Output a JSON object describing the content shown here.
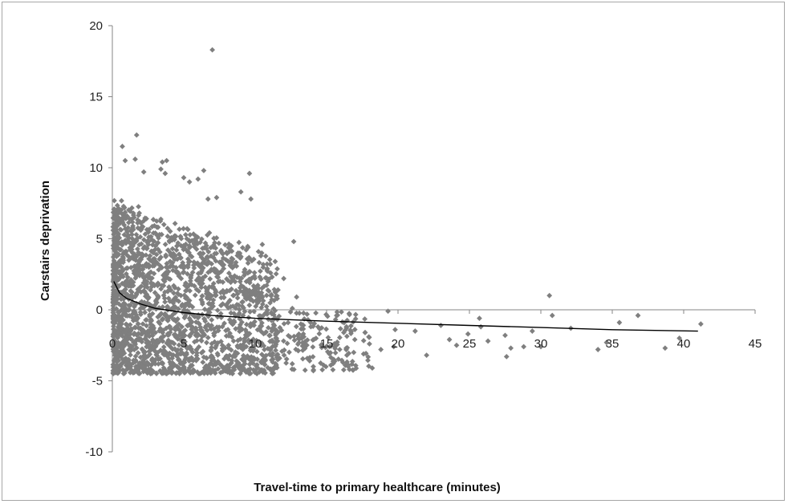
{
  "chart_data": {
    "type": "scatter",
    "title": "",
    "xlabel": "Travel-time to primary healthcare  (minutes)",
    "ylabel": "Carstairs deprivation",
    "xlim": [
      0,
      45
    ],
    "ylim": [
      -10,
      20
    ],
    "x_ticks": [
      0,
      5,
      10,
      15,
      20,
      25,
      30,
      35,
      40,
      45
    ],
    "y_ticks": [
      -10,
      -5,
      0,
      5,
      10,
      15,
      20
    ],
    "grid": false,
    "legend": "none",
    "colors": {
      "points": "#7f7f7f",
      "trend": "#000000",
      "axis": "#868686",
      "border": "#a6a6a6"
    },
    "trendline": {
      "type": "logarithmic",
      "points": [
        [
          0.1,
          2.0
        ],
        [
          0.5,
          1.2
        ],
        [
          1,
          0.8
        ],
        [
          2,
          0.4
        ],
        [
          3,
          0.1
        ],
        [
          5,
          -0.2
        ],
        [
          7,
          -0.4
        ],
        [
          10,
          -0.6
        ],
        [
          15,
          -0.8
        ],
        [
          20,
          -0.95
        ],
        [
          25,
          -1.1
        ],
        [
          30,
          -1.25
        ],
        [
          35,
          -1.4
        ],
        [
          41,
          -1.5
        ]
      ]
    },
    "series": [
      {
        "points": [
          [
            7.0,
            18.3
          ],
          [
            1.7,
            12.3
          ],
          [
            0.7,
            11.5
          ],
          [
            0.9,
            10.5
          ],
          [
            1.6,
            10.6
          ],
          [
            3.5,
            10.4
          ],
          [
            3.8,
            10.5
          ],
          [
            3.4,
            9.9
          ],
          [
            3.7,
            9.6
          ],
          [
            2.2,
            9.7
          ],
          [
            6.4,
            9.8
          ],
          [
            9.6,
            9.6
          ],
          [
            5.0,
            9.3
          ],
          [
            5.4,
            9.0
          ],
          [
            6.0,
            9.2
          ],
          [
            9.0,
            8.3
          ],
          [
            9.7,
            7.8
          ],
          [
            7.3,
            7.9
          ],
          [
            6.7,
            7.8
          ],
          [
            12.7,
            4.8
          ],
          [
            10.5,
            4.6
          ],
          [
            10.4,
            3.8
          ],
          [
            11.4,
            3.4
          ],
          [
            12.0,
            2.2
          ],
          [
            10.9,
            2.0
          ],
          [
            11.6,
            1.4
          ],
          [
            12.9,
            0.9
          ],
          [
            12.6,
            0.1
          ],
          [
            13.7,
            -0.7
          ],
          [
            14.4,
            -1.2
          ],
          [
            15.7,
            -0.4
          ],
          [
            16.2,
            -1.6
          ],
          [
            16.9,
            -3.0
          ],
          [
            15.2,
            -2.6
          ],
          [
            15.3,
            -3.9
          ],
          [
            16.6,
            -4.2
          ],
          [
            17.7,
            -1.6
          ],
          [
            18.2,
            -4.1
          ],
          [
            18.0,
            -2.4
          ],
          [
            18.8,
            -2.8
          ],
          [
            19.3,
            -0.1
          ],
          [
            19.8,
            -1.4
          ],
          [
            19.7,
            -2.6
          ],
          [
            21.2,
            -1.5
          ],
          [
            23.0,
            -1.1
          ],
          [
            23.6,
            -2.1
          ],
          [
            24.1,
            -2.5
          ],
          [
            24.9,
            -1.7
          ],
          [
            25.7,
            -0.6
          ],
          [
            25.8,
            -1.2
          ],
          [
            27.5,
            -1.8
          ],
          [
            27.6,
            -3.3
          ],
          [
            27.9,
            -2.7
          ],
          [
            28.8,
            -2.6
          ],
          [
            30.0,
            -2.6
          ],
          [
            30.6,
            1.0
          ],
          [
            30.8,
            -0.4
          ],
          [
            32.1,
            -1.3
          ],
          [
            34.0,
            -2.8
          ],
          [
            34.6,
            -2.3
          ],
          [
            35.5,
            -0.9
          ],
          [
            36.8,
            -0.4
          ],
          [
            38.7,
            -2.7
          ],
          [
            39.7,
            -2.0
          ],
          [
            41.2,
            -1.0
          ],
          [
            22.0,
            -3.2
          ],
          [
            26.3,
            -2.2
          ],
          [
            29.4,
            -1.5
          ]
        ]
      }
    ]
  }
}
